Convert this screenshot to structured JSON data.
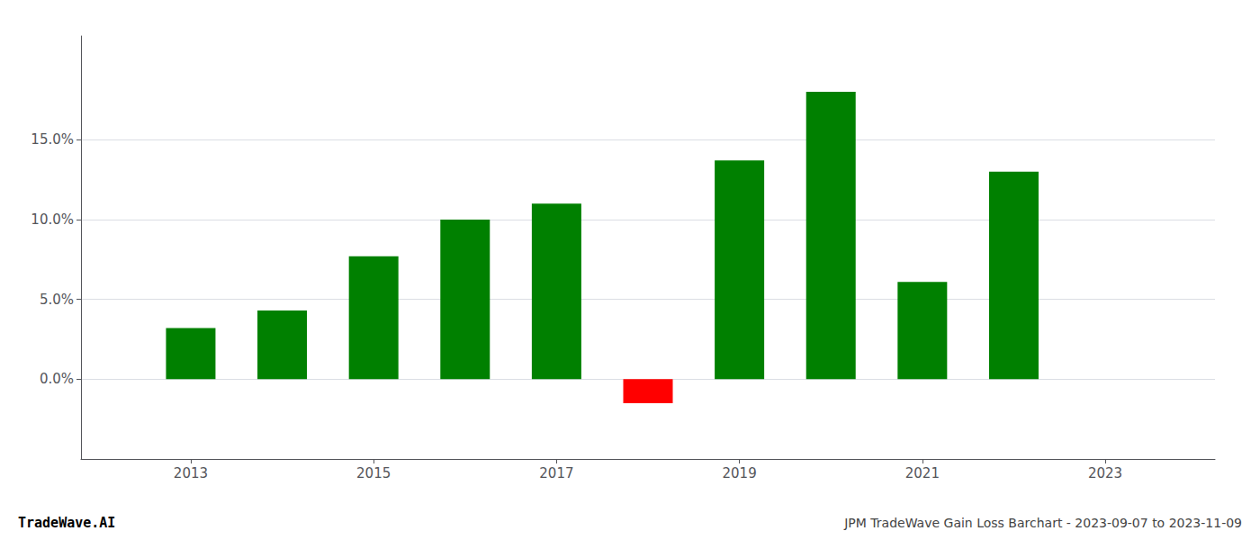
{
  "chart_data": {
    "type": "bar",
    "x": [
      2013,
      2014,
      2015,
      2016,
      2017,
      2018,
      2019,
      2020,
      2021,
      2022
    ],
    "values": [
      0.032,
      0.043,
      0.077,
      0.1,
      0.11,
      -0.015,
      0.137,
      0.18,
      0.061,
      0.13
    ],
    "colors": [
      "#008000",
      "#008000",
      "#008000",
      "#008000",
      "#008000",
      "#ff0000",
      "#008000",
      "#008000",
      "#008000",
      "#008000"
    ],
    "xlim": [
      2011.8,
      2024.2
    ],
    "xticks": [
      2013,
      2015,
      2017,
      2019,
      2021,
      2023
    ],
    "ylim": [
      -0.05,
      0.215
    ],
    "yticks": [
      {
        "value": 0.0,
        "label": "0.0%"
      },
      {
        "value": 0.05,
        "label": "5.0%"
      },
      {
        "value": 0.1,
        "label": "10.0%"
      },
      {
        "value": 0.15,
        "label": "15.0%"
      }
    ],
    "grid": true,
    "annotations": [
      "TradeWave.AI",
      "JPM TradeWave Gain Loss Barchart - 2023-09-07 to 2023-11-09"
    ]
  }
}
